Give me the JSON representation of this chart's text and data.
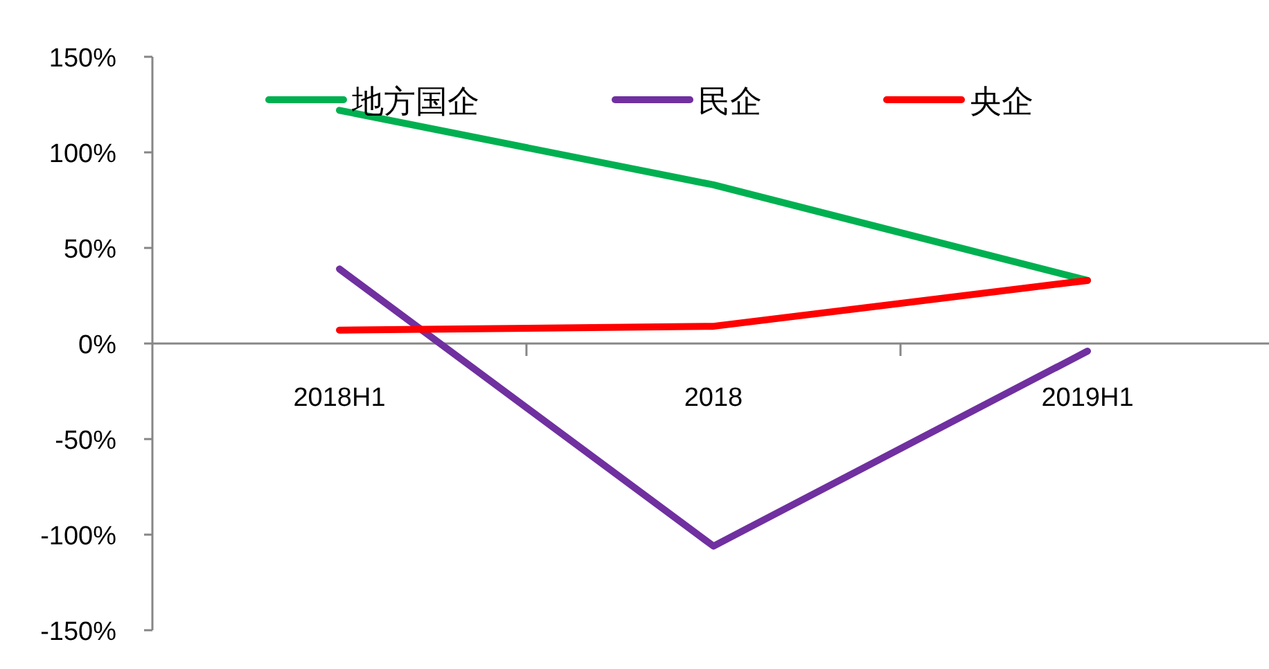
{
  "chart_data": {
    "type": "line",
    "categories": [
      "2018H1",
      "2018",
      "2019H1"
    ],
    "series": [
      {
        "name": "地方国企",
        "color": "#00b050",
        "values": [
          122,
          83,
          33
        ]
      },
      {
        "name": "民企",
        "color": "#7030a0",
        "values": [
          39,
          -106,
          -4
        ]
      },
      {
        "name": "央企",
        "color": "#ff0000",
        "values": [
          7,
          9,
          33
        ]
      }
    ],
    "ylim": [
      -150,
      150
    ],
    "yticks": [
      {
        "value": 150,
        "label": "150%"
      },
      {
        "value": 100,
        "label": "100%"
      },
      {
        "value": 50,
        "label": "50%"
      },
      {
        "value": 0,
        "label": "0%"
      },
      {
        "value": -50,
        "label": "-50%"
      },
      {
        "value": -100,
        "label": "-100%"
      },
      {
        "value": -150,
        "label": "-150%"
      }
    ],
    "grid": false,
    "legend": "top",
    "marker": "none",
    "line_style": "solid"
  }
}
